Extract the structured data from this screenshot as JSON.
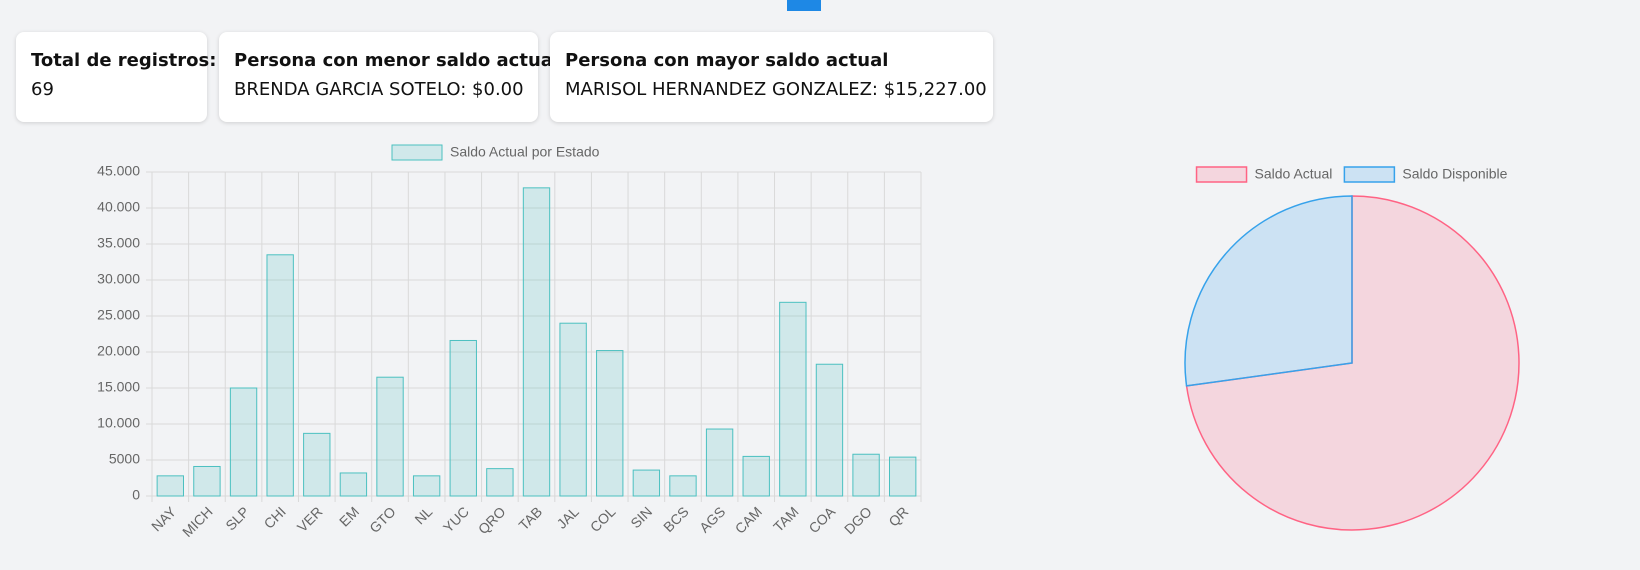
{
  "cards": [
    {
      "title": "Total de registros:",
      "text": "69"
    },
    {
      "title": "Persona con menor saldo actual",
      "text": "BRENDA GARCIA SOTELO: $0.00"
    },
    {
      "title": "Persona con mayor saldo actual",
      "text": "MARISOL HERNANDEZ GONZALEZ: $15,227.00"
    }
  ],
  "chart_data": [
    {
      "type": "bar",
      "categories": [
        "NAY",
        "MICH",
        "SLP",
        "CHI",
        "VER",
        "EM",
        "GTO",
        "NL",
        "YUC",
        "QRO",
        "TAB",
        "JAL",
        "COL",
        "SIN",
        "BCS",
        "AGS",
        "CAM",
        "TAM",
        "COA",
        "DGO",
        "QR"
      ],
      "series": [
        {
          "name": "Saldo Actual por Estado",
          "color": "#4bc0c0",
          "values": [
            2800,
            4100,
            15000,
            33500,
            8700,
            3200,
            16500,
            2800,
            21600,
            3800,
            42800,
            24000,
            20200,
            3600,
            2800,
            9300,
            5500,
            26900,
            18300,
            5800,
            5400
          ]
        }
      ],
      "ylim": [
        0,
        45000
      ],
      "yticks": [
        0,
        5000,
        {
          "value": 10000,
          "label": "10.000"
        },
        {
          "value": 15000,
          "label": "15.000"
        },
        {
          "value": 20000,
          "label": "20.000"
        },
        {
          "value": 25000,
          "label": "25.000"
        },
        {
          "value": 30000,
          "label": "30.000"
        },
        {
          "value": 35000,
          "label": "35.000"
        },
        {
          "value": 40000,
          "label": "40.000"
        },
        {
          "value": 45000,
          "label": "45.000"
        }
      ],
      "grid": true
    },
    {
      "type": "pie",
      "categories": [
        "Saldo Actual",
        "Saldo Disponible"
      ],
      "values": [
        276600,
        103300
      ],
      "colors": [
        "#ff6384",
        "#36a2eb"
      ]
    }
  ]
}
